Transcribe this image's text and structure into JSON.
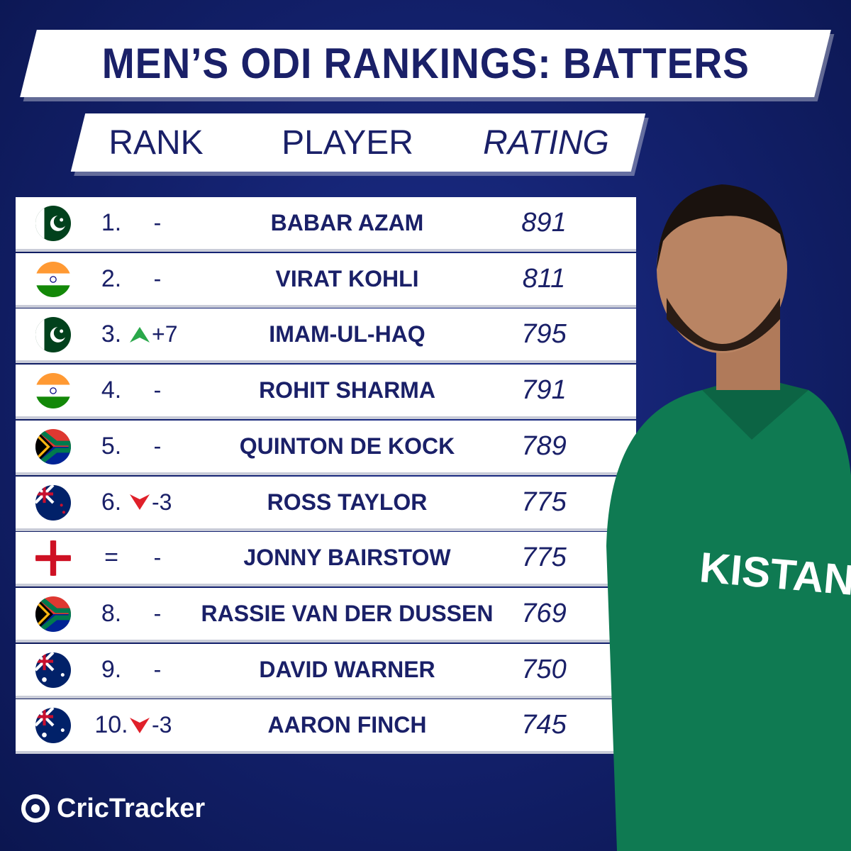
{
  "header": {
    "title": "MEN’S ODI RANKINGS: BATTERS"
  },
  "table": {
    "columns": [
      "RANK",
      "PLAYER",
      "RATING"
    ],
    "rows": [
      {
        "rank": "1.",
        "change": "-",
        "player": "BABAR AZAM",
        "rating": 891
      },
      {
        "rank": "2.",
        "change": "-",
        "player": "VIRAT KOHLI",
        "rating": 811
      },
      {
        "rank": "3.",
        "change": "+7",
        "player": "IMAM-UL-HAQ",
        "rating": 795
      },
      {
        "rank": "4.",
        "change": "-",
        "player": "ROHIT SHARMA",
        "rating": 791
      },
      {
        "rank": "5.",
        "change": "-",
        "player": "QUINTON DE KOCK",
        "rating": 789
      },
      {
        "rank": "6.",
        "change": "-3",
        "player": "ROSS TAYLOR",
        "rating": 775
      },
      {
        "rank": "=",
        "change": "-",
        "player": "JONNY BAIRSTOW",
        "rating": 775
      },
      {
        "rank": "8.",
        "change": "-",
        "player": "RASSIE VAN DER DUSSEN",
        "rating": 769
      },
      {
        "rank": "9.",
        "change": "-",
        "player": "DAVID WARNER",
        "rating": 750
      },
      {
        "rank": "10.",
        "change": "-3",
        "player": "AARON FINCH",
        "rating": 745
      }
    ]
  },
  "footer": {
    "brand": "CricTracker"
  }
}
